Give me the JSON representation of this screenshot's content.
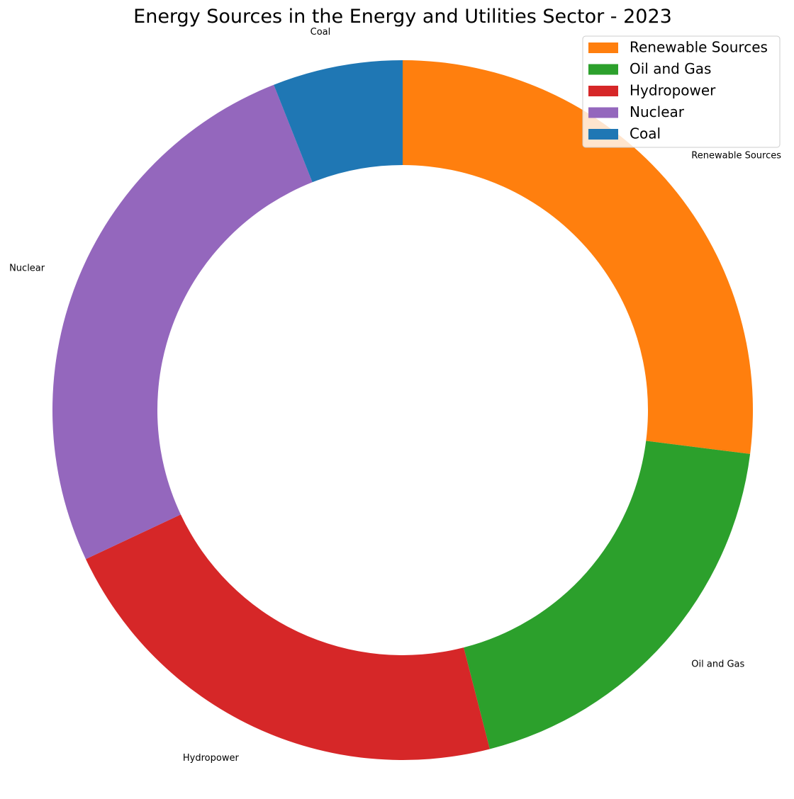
{
  "chart_data": {
    "type": "pie",
    "variant": "donut",
    "title": "Energy Sources in the Energy and Utilities Sector - 2023",
    "categories": [
      "Renewable Sources",
      "Oil and Gas",
      "Hydropower",
      "Nuclear",
      "Coal"
    ],
    "values": [
      27,
      19,
      22,
      26,
      6
    ],
    "unit": "%",
    "colors": [
      "#ff7f0e",
      "#2ca02c",
      "#d62728",
      "#9467bd",
      "#1f77b4"
    ],
    "start_angle": "top (12 o'clock)",
    "direction": "clockwise",
    "legend": {
      "position": "top-right",
      "entries": [
        "Renewable Sources",
        "Oil and Gas",
        "Hydropower",
        "Nuclear",
        "Coal"
      ]
    }
  }
}
